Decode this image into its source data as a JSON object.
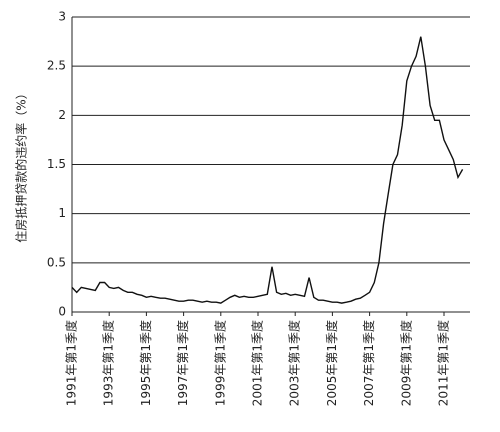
{
  "chart_data": {
    "type": "line",
    "y_label": "住房抵押贷款的违约率（%）",
    "categories": [
      "1991年第1季度",
      null,
      null,
      null,
      null,
      null,
      null,
      null,
      "1993年第1季度",
      null,
      null,
      null,
      null,
      null,
      null,
      null,
      "1995年第1季度",
      null,
      null,
      null,
      null,
      null,
      null,
      null,
      "1997年第1季度",
      null,
      null,
      null,
      null,
      null,
      null,
      null,
      "1999年第1季度",
      null,
      null,
      null,
      null,
      null,
      null,
      null,
      "2001年第1季度",
      null,
      null,
      null,
      null,
      null,
      null,
      null,
      "2003年第1季度",
      null,
      null,
      null,
      null,
      null,
      null,
      null,
      "2005年第1季度",
      null,
      null,
      null,
      null,
      null,
      null,
      null,
      "2007年第1季度",
      null,
      null,
      null,
      null,
      null,
      null,
      null,
      "2009年第1季度",
      null,
      null,
      null,
      null,
      null,
      null,
      null,
      "2011年第1季度",
      null,
      null,
      null,
      null
    ],
    "values": [
      0.25,
      0.2,
      0.25,
      0.24,
      0.23,
      0.22,
      0.3,
      0.3,
      0.25,
      0.24,
      0.25,
      0.22,
      0.2,
      0.2,
      0.18,
      0.17,
      0.15,
      0.16,
      0.15,
      0.14,
      0.14,
      0.13,
      0.12,
      0.11,
      0.11,
      0.12,
      0.12,
      0.11,
      0.1,
      0.11,
      0.1,
      0.1,
      0.09,
      0.12,
      0.15,
      0.17,
      0.15,
      0.16,
      0.15,
      0.15,
      0.16,
      0.17,
      0.18,
      0.46,
      0.2,
      0.18,
      0.19,
      0.17,
      0.18,
      0.17,
      0.16,
      0.35,
      0.15,
      0.12,
      0.12,
      0.11,
      0.1,
      0.1,
      0.09,
      0.1,
      0.11,
      0.13,
      0.14,
      0.17,
      0.2,
      0.3,
      0.5,
      0.9,
      1.2,
      1.5,
      1.6,
      1.9,
      2.35,
      2.5,
      2.6,
      2.8,
      2.5,
      2.1,
      1.95,
      1.95,
      1.75,
      1.65,
      1.55,
      1.37,
      1.45
    ],
    "color": "#111111",
    "ylim": [
      0,
      3
    ],
    "yticks": [
      0,
      0.5,
      1,
      1.5,
      2,
      2.5,
      3
    ],
    "grid": true
  }
}
